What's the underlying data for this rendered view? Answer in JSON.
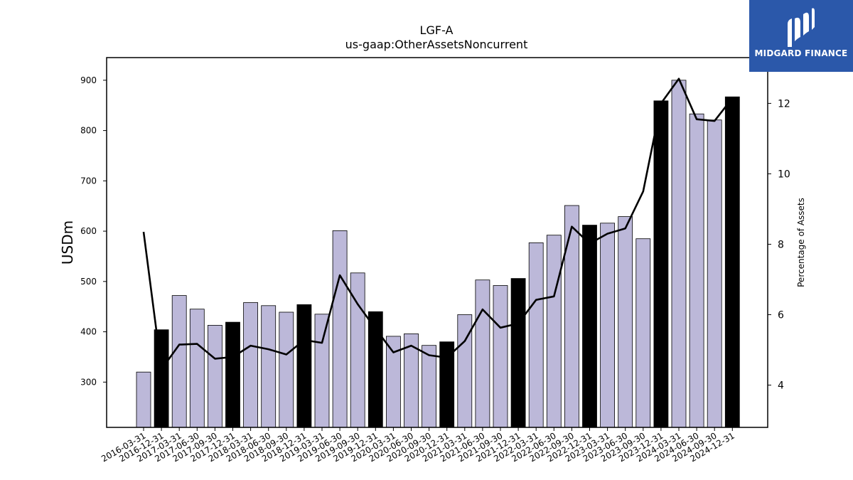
{
  "chart_data": {
    "type": "bar",
    "title": "LGF-A",
    "subtitle": "us-gaap:OtherAssetsNoncurrent",
    "ylabel": "USDm",
    "y2label": "Percentage of Assets",
    "ylim": [
      210,
      945
    ],
    "y2lim": [
      2.8,
      13.3
    ],
    "yticks": [
      300,
      400,
      500,
      600,
      700,
      800,
      900
    ],
    "y2ticks": [
      4,
      6,
      8,
      10,
      12
    ],
    "categories": [
      "2016-03-31",
      "2016-12-31",
      "2017-03-31",
      "2017-06-30",
      "2017-09-30",
      "2017-12-31",
      "2018-03-31",
      "2018-06-30",
      "2018-09-30",
      "2018-12-31",
      "2019-03-31",
      "2019-06-30",
      "2019-09-30",
      "2019-12-31",
      "2020-03-31",
      "2020-06-30",
      "2020-09-30",
      "2020-12-31",
      "2021-03-31",
      "2021-06-30",
      "2021-09-30",
      "2021-12-31",
      "2022-03-31",
      "2022-06-30",
      "2022-09-30",
      "2022-12-31",
      "2023-03-31",
      "2023-06-30",
      "2023-09-30",
      "2023-12-31",
      "2024-03-31",
      "2024-06-30",
      "2024-09-30",
      "2024-12-31"
    ],
    "values": [
      320,
      404,
      472,
      445,
      413,
      419,
      458,
      452,
      439,
      454,
      435,
      601,
      517,
      440,
      391,
      396,
      373,
      380,
      434,
      503,
      492,
      506,
      577,
      592,
      651,
      612,
      616,
      629,
      585,
      859,
      900,
      833,
      821,
      867
    ],
    "highlight": [
      false,
      true,
      false,
      false,
      false,
      true,
      false,
      false,
      false,
      true,
      false,
      false,
      false,
      true,
      false,
      false,
      false,
      true,
      false,
      false,
      false,
      true,
      false,
      false,
      false,
      true,
      false,
      false,
      false,
      true,
      false,
      false,
      false,
      true
    ],
    "line_values": [
      8.35,
      4.45,
      5.15,
      5.17,
      4.75,
      4.8,
      5.12,
      5.02,
      4.87,
      5.28,
      5.2,
      7.12,
      6.3,
      5.6,
      4.93,
      5.12,
      4.85,
      4.78,
      5.25,
      6.15,
      5.63,
      5.75,
      6.42,
      6.52,
      8.5,
      8.02,
      8.3,
      8.45,
      9.5,
      12.0,
      12.7,
      11.55,
      11.5,
      12.15
    ],
    "colors": {
      "bar": "#bcb8d9",
      "bar_highlight": "#000000",
      "line": "#000000"
    },
    "grid": false
  },
  "logo": {
    "text": "MIDGARD FINANCE",
    "icon": "midgard-logo-icon"
  }
}
